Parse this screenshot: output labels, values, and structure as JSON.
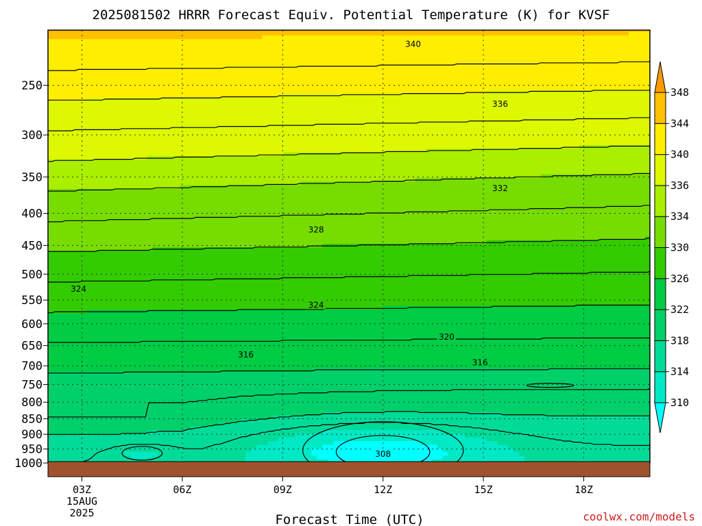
{
  "chart_data": {
    "type": "heatmap",
    "title": "2025081502 HRRR Forecast Equiv. Potential Temperature (K) for KVSF",
    "xlabel": "Forecast Time (UTC)",
    "credit": "coolwx.com/models",
    "x_ticks": [
      {
        "label": "03Z",
        "hour": 3,
        "sub1": "15AUG",
        "sub2": "2025"
      },
      {
        "label": "06Z",
        "hour": 6
      },
      {
        "label": "09Z",
        "hour": 9
      },
      {
        "label": "12Z",
        "hour": 12
      },
      {
        "label": "15Z",
        "hour": 15
      },
      {
        "label": "18Z",
        "hour": 18
      }
    ],
    "xlim": [
      2,
      20
    ],
    "y_ticks": [
      {
        "label": "250",
        "p": 250
      },
      {
        "label": "300",
        "p": 300
      },
      {
        "label": "350",
        "p": 350
      },
      {
        "label": "400",
        "p": 400
      },
      {
        "label": "450",
        "p": 450
      },
      {
        "label": "500",
        "p": 500
      },
      {
        "label": "550",
        "p": 550
      },
      {
        "label": "600",
        "p": 600
      },
      {
        "label": "650",
        "p": 650
      },
      {
        "label": "700",
        "p": 700
      },
      {
        "label": "750",
        "p": 750
      },
      {
        "label": "800",
        "p": 800
      },
      {
        "label": "850",
        "p": 850
      },
      {
        "label": "900",
        "p": 900
      },
      {
        "label": "950",
        "p": 950
      },
      {
        "label": "1000",
        "p": 1000
      }
    ],
    "ylim_hPa": [
      200,
      1000
    ],
    "y_scale": "log-pressure",
    "grid": true,
    "surface_color": "#a0522d",
    "colorbar": {
      "labels": [
        "310",
        "314",
        "318",
        "322",
        "326",
        "330",
        "334",
        "336",
        "340",
        "344",
        "348"
      ],
      "colors": [
        "#00ffff",
        "#00e8c4",
        "#00dc98",
        "#00d06a",
        "#00cc44",
        "#33cc00",
        "#77dd00",
        "#aaee00",
        "#ddf800",
        "#ffee00",
        "#ffc000",
        "#ff9900"
      ]
    },
    "contour_labels": [
      {
        "text": "340",
        "hour": 12.9,
        "p": 215
      },
      {
        "text": "336",
        "hour": 15.5,
        "p": 268
      },
      {
        "text": "332",
        "hour": 15.5,
        "p": 365
      },
      {
        "text": "328",
        "hour": 10.0,
        "p": 425
      },
      {
        "text": "324",
        "hour": 2.9,
        "p": 528
      },
      {
        "text": "324",
        "hour": 10.0,
        "p": 560
      },
      {
        "text": "320",
        "hour": 13.9,
        "p": 630
      },
      {
        "text": "316",
        "hour": 7.9,
        "p": 672
      },
      {
        "text": "316",
        "hour": 14.9,
        "p": 692
      },
      {
        "text": "308",
        "hour": 12.0,
        "p": 968
      }
    ],
    "isotherm_values": [
      342,
      340,
      338,
      336,
      334,
      332,
      330,
      328,
      326,
      324,
      322,
      320,
      318,
      316
    ]
  }
}
